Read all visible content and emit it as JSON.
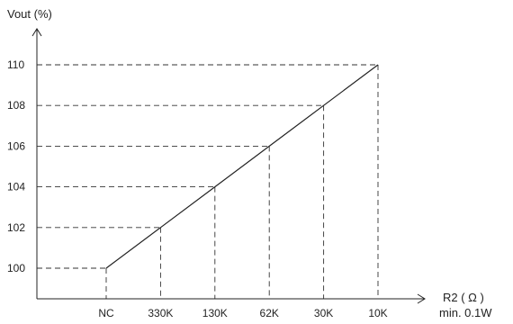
{
  "chart_data": {
    "type": "line",
    "title": "",
    "ylabel": "Vout (%)",
    "xlabel": [
      "R2 ( Ω )",
      "min. 0.1W"
    ],
    "categories": [
      "NC",
      "330K",
      "130K",
      "62K",
      "30K",
      "10K"
    ],
    "y_ticks": [
      100,
      102,
      104,
      106,
      108,
      110
    ],
    "ylim": [
      98.8,
      110
    ],
    "series": [
      {
        "values": [
          100,
          102,
          104,
          106,
          108,
          110
        ]
      }
    ],
    "grid": "dashed drop lines from each point to both axes",
    "colors": {
      "line": "#222222",
      "axis": "#222222",
      "grid": "#333333"
    }
  }
}
